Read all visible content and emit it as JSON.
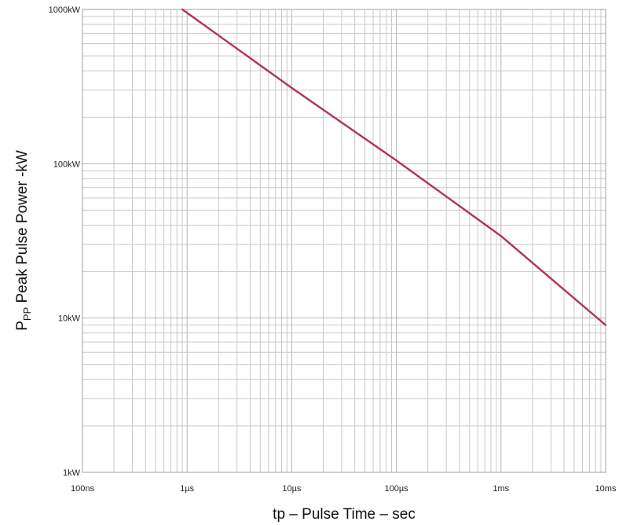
{
  "chart_data": {
    "type": "line",
    "title": "",
    "xlabel": "tp – Pulse Time – sec",
    "ylabel_main": "P",
    "ylabel_sub": "PP",
    "ylabel_rest": " Peak Pulse Power -kW",
    "x_scale": "log",
    "y_scale": "log",
    "xlim": [
      1e-07,
      0.01
    ],
    "ylim": [
      1,
      1000
    ],
    "x_ticks": [
      {
        "value": 1e-07,
        "label": "100ns"
      },
      {
        "value": 1e-06,
        "label": "1µs"
      },
      {
        "value": 1e-05,
        "label": "10µs"
      },
      {
        "value": 0.0001,
        "label": "100µs"
      },
      {
        "value": 0.001,
        "label": "1ms"
      },
      {
        "value": 0.01,
        "label": "10ms"
      }
    ],
    "y_ticks": [
      {
        "value": 1,
        "label": "1kW"
      },
      {
        "value": 10,
        "label": "10kW"
      },
      {
        "value": 100,
        "label": "100kW"
      },
      {
        "value": 1000,
        "label": "1000kW"
      }
    ],
    "grid": true,
    "line_color": "#b5334f",
    "series": [
      {
        "x": [
          9e-07,
          1e-06,
          1e-05,
          0.0001,
          0.001,
          0.01
        ],
        "y": [
          1000,
          950,
          310,
          105,
          34,
          9
        ]
      }
    ]
  }
}
